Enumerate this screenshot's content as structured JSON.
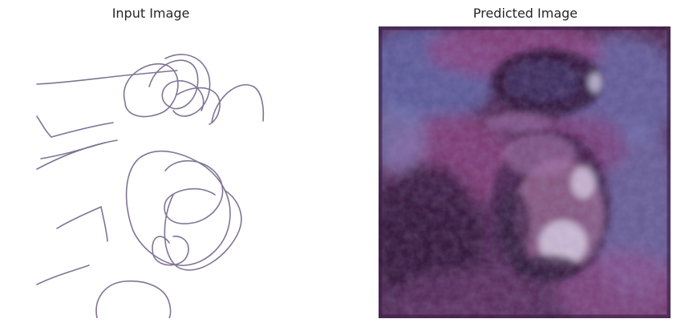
{
  "panels": [
    {
      "title": "Input Image"
    },
    {
      "title": "Predicted Image"
    }
  ],
  "colors": {
    "sketch_stroke": "#6b5c83",
    "predicted_base": "#4e2850",
    "predicted_blue": "#5c64a8",
    "predicted_magenta": "#8a3f7a",
    "predicted_dark": "#2a1230",
    "predicted_light": "#e8e0f0"
  }
}
